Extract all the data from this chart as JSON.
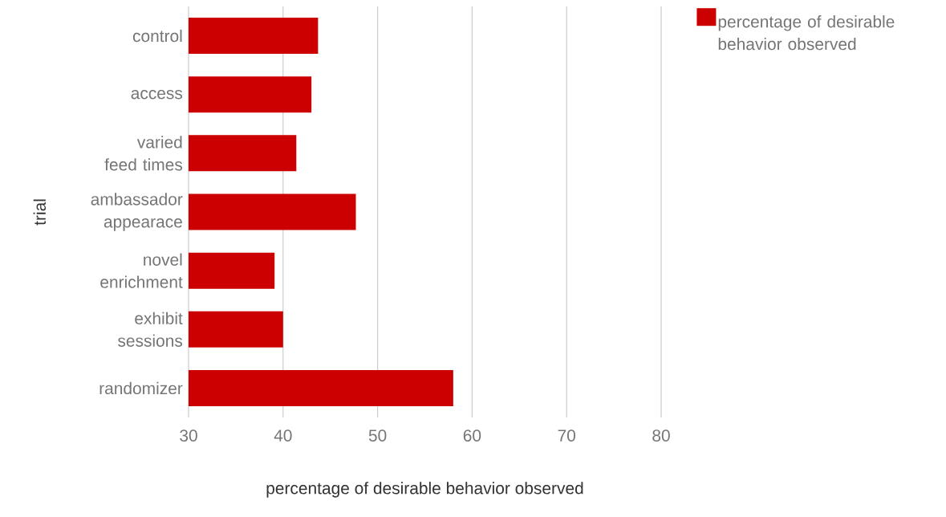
{
  "chart_data": {
    "type": "bar",
    "orientation": "horizontal",
    "xlabel": "percentage of desirable behavior observed",
    "ylabel": "trial",
    "categories": [
      "control",
      "access",
      "varied feed times",
      "ambassador appearace",
      "novel enrichment",
      "exhibit sessions",
      "randomizer"
    ],
    "series": [
      {
        "name": "percentage of desirable behavior observed",
        "color": "#cc0000",
        "values": [
          43.7,
          43.0,
          41.4,
          47.7,
          39.1,
          40.0,
          58.0
        ]
      }
    ],
    "xlim": [
      30,
      80
    ],
    "xticks": [
      30,
      40,
      50,
      60,
      70,
      80
    ],
    "grid": "x",
    "legend": "top right"
  }
}
